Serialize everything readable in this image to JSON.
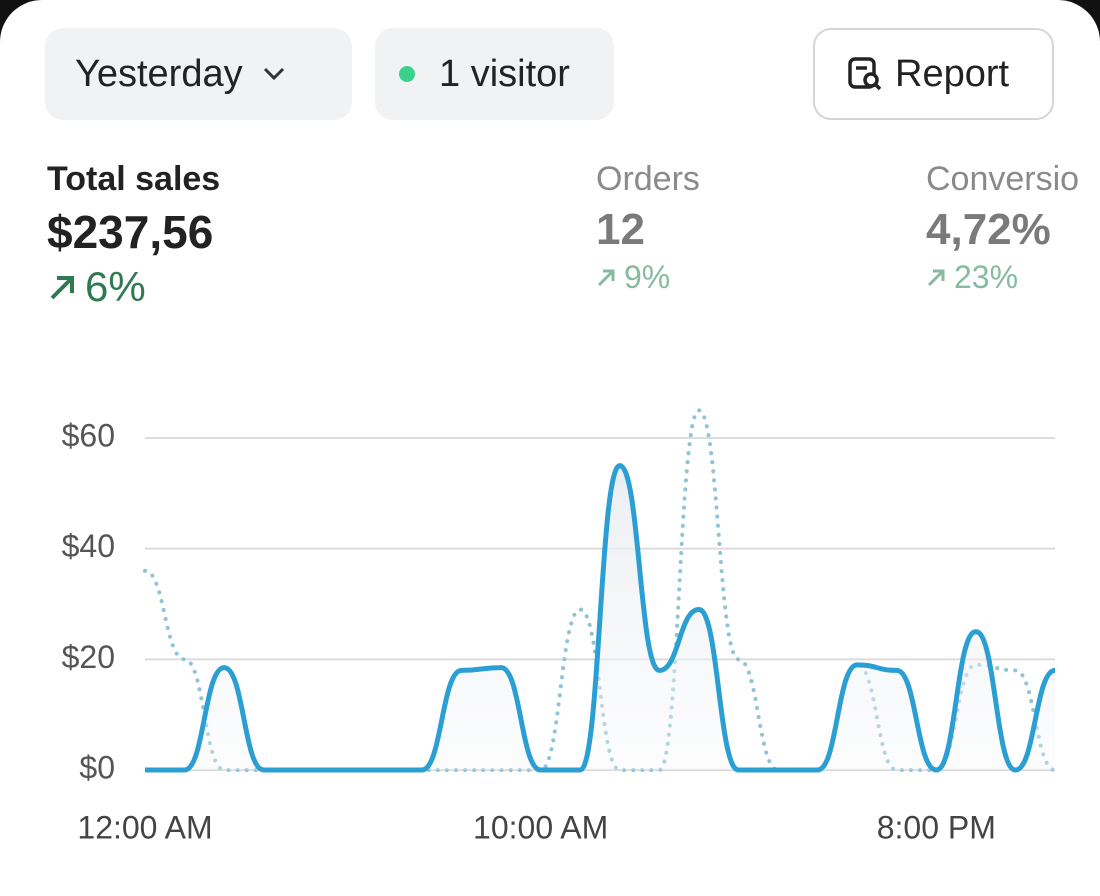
{
  "toolbar": {
    "date_button": "Yesterday",
    "visitors_button": "1 visitor",
    "report_button": "Report"
  },
  "metrics": [
    {
      "label": "Total sales",
      "value": "$237,56",
      "change": "6%"
    },
    {
      "label": "Orders",
      "value": "12",
      "change": "9%"
    },
    {
      "label": "Conversio",
      "value": "4,72%",
      "change": "23%"
    }
  ],
  "chart_data": {
    "type": "line",
    "categories": [
      "12:00 AM",
      null,
      null,
      null,
      null,
      null,
      null,
      null,
      null,
      null,
      "10:00 AM",
      null,
      null,
      null,
      null,
      null,
      null,
      null,
      null,
      null,
      "8:00 PM",
      null,
      null,
      null
    ],
    "series": [
      {
        "color": "#2b9fd4",
        "style": "solid",
        "values": [
          0,
          0,
          18.5,
          0,
          0,
          0,
          0,
          0,
          18,
          18.5,
          0,
          0,
          55,
          18,
          29,
          0,
          0,
          0,
          19,
          18,
          0,
          25,
          0,
          18
        ]
      },
      {
        "color": "#8fc3d6",
        "style": "dotted",
        "values": [
          36,
          20,
          0,
          0,
          0,
          0,
          0,
          0,
          0,
          0,
          0,
          29,
          0,
          0,
          65,
          20,
          0,
          0,
          19,
          0,
          0,
          19,
          18,
          0
        ]
      }
    ],
    "ylim": [
      0,
      60
    ],
    "yticks": [
      {
        "value": 0,
        "label": "$0"
      },
      {
        "value": 20,
        "label": "$20"
      },
      {
        "value": 40,
        "label": "$40"
      },
      {
        "value": 60,
        "label": "$60"
      }
    ],
    "grid": true
  }
}
